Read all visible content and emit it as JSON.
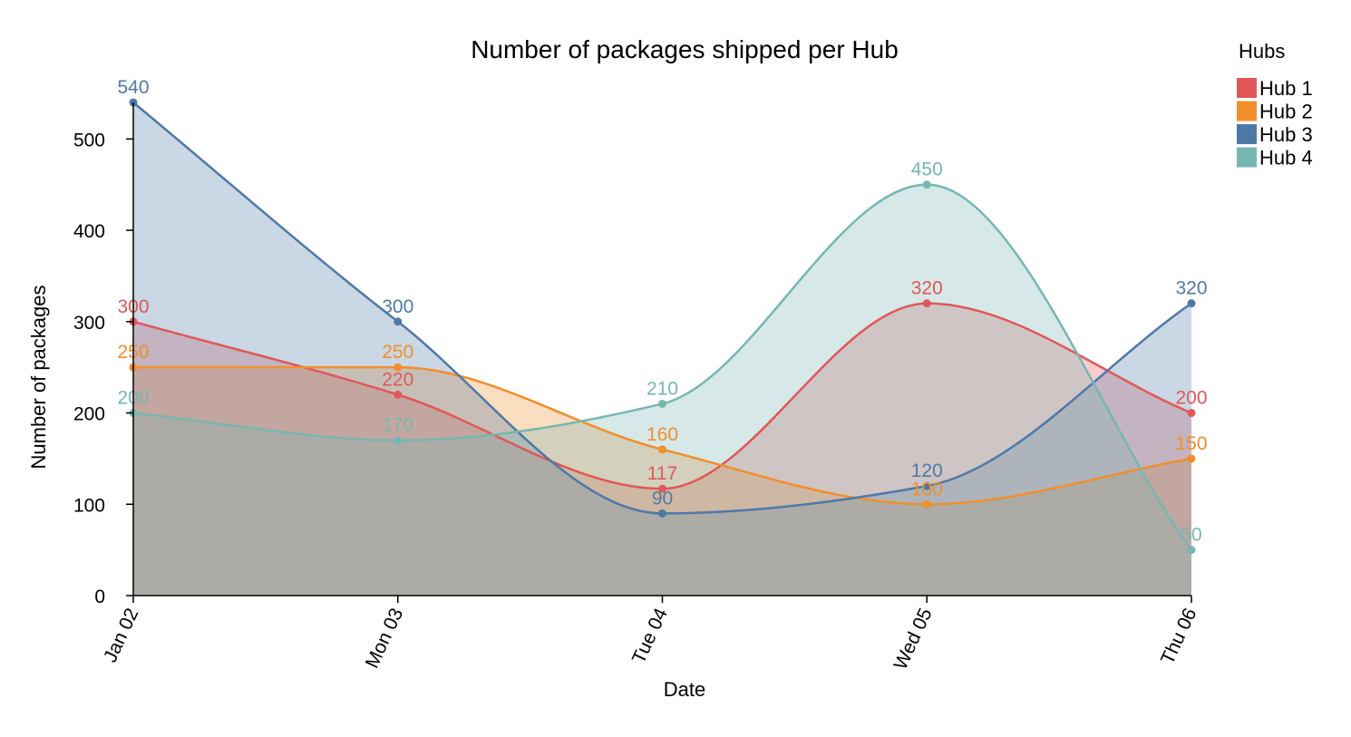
{
  "chart_data": {
    "type": "area",
    "title": "Number of packages shipped per Hub",
    "xlabel": "Date",
    "ylabel": "Number of packages",
    "categories": [
      "Jan 02",
      "Mon 03",
      "Tue 04",
      "Wed 05",
      "Thu 06"
    ],
    "ylim": [
      0,
      540
    ],
    "yticks": [
      0,
      100,
      200,
      300,
      400,
      500
    ],
    "grid": false,
    "legend": {
      "title": "Hubs",
      "position": "top-right"
    },
    "series": [
      {
        "name": "Hub 1",
        "color": "#e15759",
        "values": [
          300,
          220,
          117,
          320,
          200
        ]
      },
      {
        "name": "Hub 2",
        "color": "#f28e2b",
        "values": [
          250,
          250,
          160,
          100,
          150
        ]
      },
      {
        "name": "Hub 3",
        "color": "#4e79a7",
        "values": [
          540,
          300,
          90,
          120,
          320
        ]
      },
      {
        "name": "Hub 4",
        "color": "#76b7b2",
        "values": [
          200,
          170,
          210,
          450,
          50
        ]
      }
    ]
  }
}
